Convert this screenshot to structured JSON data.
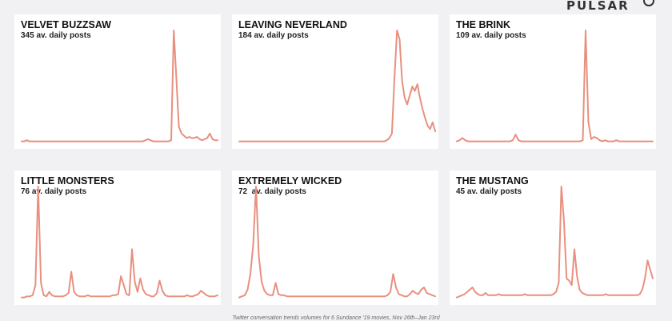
{
  "brand": {
    "name": "PULSAR"
  },
  "caption": "Twitter conversation trends volumes for 6 Sundance '19 movies, Nov 26th–Jan 23rd",
  "colors": {
    "line": "#e8907f",
    "panel": "#ffffff",
    "background": "#f1f1f3"
  },
  "chart_data": [
    {
      "type": "line",
      "title": "VELVET BUZZSAW",
      "subtitle": "345 av. daily posts",
      "ylim": [
        0,
        100
      ],
      "values": [
        1,
        1,
        2,
        1,
        1,
        1,
        1,
        1,
        1,
        1,
        1,
        1,
        1,
        1,
        1,
        1,
        1,
        1,
        1,
        1,
        1,
        1,
        1,
        1,
        1,
        1,
        1,
        1,
        1,
        1,
        1,
        1,
        1,
        1,
        1,
        1,
        1,
        1,
        1,
        1,
        1,
        1,
        1,
        1,
        1,
        1,
        1,
        1,
        2,
        3,
        2,
        1,
        1,
        1,
        1,
        1,
        1,
        1,
        2,
        100,
        58,
        14,
        8,
        6,
        4,
        5,
        4,
        4,
        5,
        3,
        2,
        3,
        4,
        8,
        3,
        2,
        2
      ]
    },
    {
      "type": "line",
      "title": "LEAVING NEVERLAND",
      "subtitle": "184 av. daily posts",
      "ylim": [
        0,
        100
      ],
      "values": [
        1,
        1,
        1,
        1,
        1,
        1,
        1,
        1,
        1,
        1,
        1,
        1,
        1,
        1,
        1,
        1,
        1,
        1,
        1,
        1,
        1,
        1,
        1,
        1,
        1,
        1,
        1,
        1,
        1,
        1,
        1,
        1,
        1,
        1,
        1,
        1,
        1,
        1,
        1,
        1,
        1,
        1,
        1,
        1,
        1,
        1,
        1,
        1,
        1,
        1,
        1,
        1,
        1,
        1,
        1,
        1,
        1,
        1,
        2,
        4,
        8,
        58,
        100,
        92,
        55,
        40,
        34,
        42,
        50,
        46,
        52,
        40,
        30,
        22,
        15,
        12,
        18,
        10
      ]
    },
    {
      "type": "line",
      "title": "THE BRINK",
      "subtitle": "109 av. daily posts",
      "ylim": [
        0,
        100
      ],
      "values": [
        1,
        2,
        4,
        2,
        1,
        1,
        1,
        1,
        1,
        1,
        1,
        1,
        1,
        1,
        1,
        1,
        1,
        1,
        1,
        1,
        2,
        7,
        2,
        1,
        1,
        1,
        1,
        1,
        1,
        1,
        1,
        1,
        1,
        1,
        1,
        1,
        1,
        1,
        1,
        1,
        1,
        1,
        1,
        1,
        1,
        2,
        100,
        18,
        3,
        5,
        4,
        2,
        1,
        2,
        1,
        1,
        1,
        2,
        1,
        1,
        1,
        1,
        1,
        1,
        1,
        1,
        1,
        1,
        1,
        1,
        1
      ]
    },
    {
      "type": "line",
      "title": "LITTLE MONSTERS",
      "subtitle": "76 av. daily posts",
      "ylim": [
        0,
        100
      ],
      "values": [
        1,
        1,
        2,
        2,
        3,
        12,
        100,
        14,
        3,
        2,
        6,
        3,
        2,
        2,
        2,
        2,
        3,
        5,
        24,
        6,
        3,
        2,
        2,
        2,
        3,
        2,
        2,
        2,
        2,
        2,
        2,
        2,
        2,
        3,
        3,
        4,
        20,
        12,
        4,
        3,
        44,
        15,
        6,
        18,
        8,
        4,
        3,
        2,
        2,
        5,
        16,
        7,
        3,
        2,
        2,
        2,
        2,
        2,
        2,
        2,
        3,
        2,
        2,
        3,
        4,
        7,
        5,
        3,
        2,
        2,
        2,
        3
      ]
    },
    {
      "type": "line",
      "title": "EXTREMELY WICKED",
      "subtitle": "72  av. daily posts",
      "ylim": [
        0,
        100
      ],
      "values": [
        1,
        2,
        3,
        8,
        22,
        48,
        100,
        38,
        15,
        7,
        4,
        3,
        3,
        14,
        4,
        3,
        3,
        2,
        2,
        2,
        2,
        2,
        2,
        2,
        2,
        2,
        2,
        2,
        2,
        2,
        2,
        2,
        2,
        2,
        2,
        2,
        2,
        2,
        2,
        2,
        2,
        2,
        2,
        2,
        2,
        2,
        2,
        2,
        2,
        2,
        2,
        2,
        2,
        3,
        6,
        22,
        10,
        4,
        3,
        2,
        2,
        4,
        7,
        5,
        4,
        8,
        10,
        5,
        4,
        3,
        2
      ]
    },
    {
      "type": "line",
      "title": "THE MUSTANG",
      "subtitle": "45 av. daily posts",
      "ylim": [
        0,
        100
      ],
      "values": [
        1,
        2,
        3,
        4,
        6,
        8,
        10,
        6,
        4,
        3,
        3,
        5,
        3,
        3,
        3,
        3,
        4,
        3,
        3,
        3,
        3,
        3,
        3,
        3,
        3,
        3,
        4,
        3,
        3,
        3,
        3,
        3,
        3,
        3,
        3,
        3,
        3,
        4,
        6,
        14,
        100,
        70,
        18,
        16,
        12,
        44,
        20,
        8,
        5,
        4,
        3,
        3,
        3,
        3,
        3,
        3,
        3,
        4,
        3,
        3,
        3,
        3,
        3,
        3,
        3,
        3,
        3,
        3,
        3,
        3,
        4,
        8,
        18,
        34,
        26,
        18
      ]
    }
  ]
}
